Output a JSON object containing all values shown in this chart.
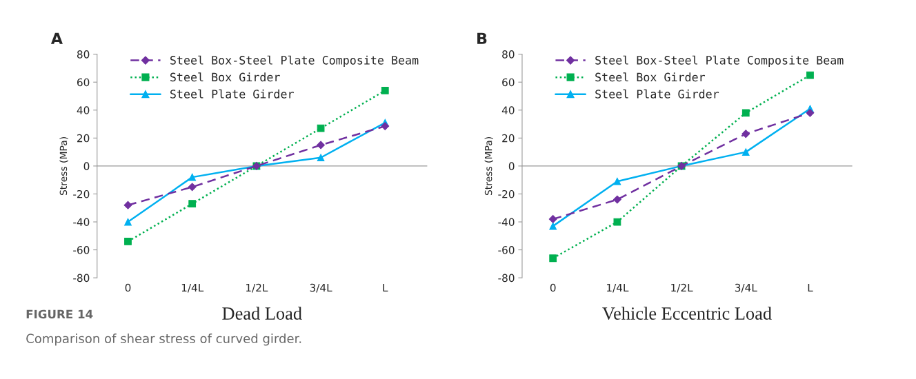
{
  "chart_data": [
    {
      "type": "line",
      "title": "A",
      "xlabel": "Dead Load",
      "ylabel": "Stress (MPa)",
      "categories": [
        "0",
        "1/4L",
        "1/2L",
        "3/4L",
        "L"
      ],
      "ylim": [
        -80,
        80
      ],
      "yticks": [
        -80,
        -60,
        -40,
        -20,
        0,
        20,
        40,
        60,
        80
      ],
      "legend": "top left",
      "series": [
        {
          "name": "Steel Box-Steel Plate Composite Beam",
          "color": "#7030a0",
          "marker": "diamond",
          "line_style": "dashed",
          "values": [
            -28,
            -15,
            0,
            15,
            28.5
          ]
        },
        {
          "name": "Steel Box Girder",
          "color": "#00b050",
          "marker": "square",
          "line_style": "dotted",
          "values": [
            -54,
            -27,
            0,
            27,
            54
          ]
        },
        {
          "name": "Steel Plate Girder",
          "color": "#00b0f0",
          "marker": "triangle",
          "line_style": "solid",
          "values": [
            -40,
            -8,
            0,
            6,
            31
          ]
        }
      ],
      "annotations": [
        "FIGURE 14",
        "Comparison of shear stress of curved girder."
      ]
    },
    {
      "type": "line",
      "title": "B",
      "xlabel": "Vehicle Eccentric Load",
      "ylabel": "Stress (MPa)",
      "categories": [
        "0",
        "1/4L",
        "1/2L",
        "3/4L",
        "L"
      ],
      "ylim": [
        -80,
        80
      ],
      "yticks": [
        -80,
        -60,
        -40,
        -20,
        0,
        20,
        40,
        60,
        80
      ],
      "legend": "top left",
      "series": [
        {
          "name": "Steel Box-Steel Plate Composite Beam",
          "color": "#7030a0",
          "marker": "diamond",
          "line_style": "dashed",
          "values": [
            -38,
            -24,
            0,
            23,
            38
          ]
        },
        {
          "name": "Steel Box Girder",
          "color": "#00b050",
          "marker": "square",
          "line_style": "dotted",
          "values": [
            -66,
            -40,
            0,
            38,
            65
          ]
        },
        {
          "name": "Steel Plate Girder",
          "color": "#00b0f0",
          "marker": "triangle",
          "line_style": "solid",
          "values": [
            -43,
            -11,
            0,
            10,
            41
          ]
        }
      ]
    }
  ]
}
